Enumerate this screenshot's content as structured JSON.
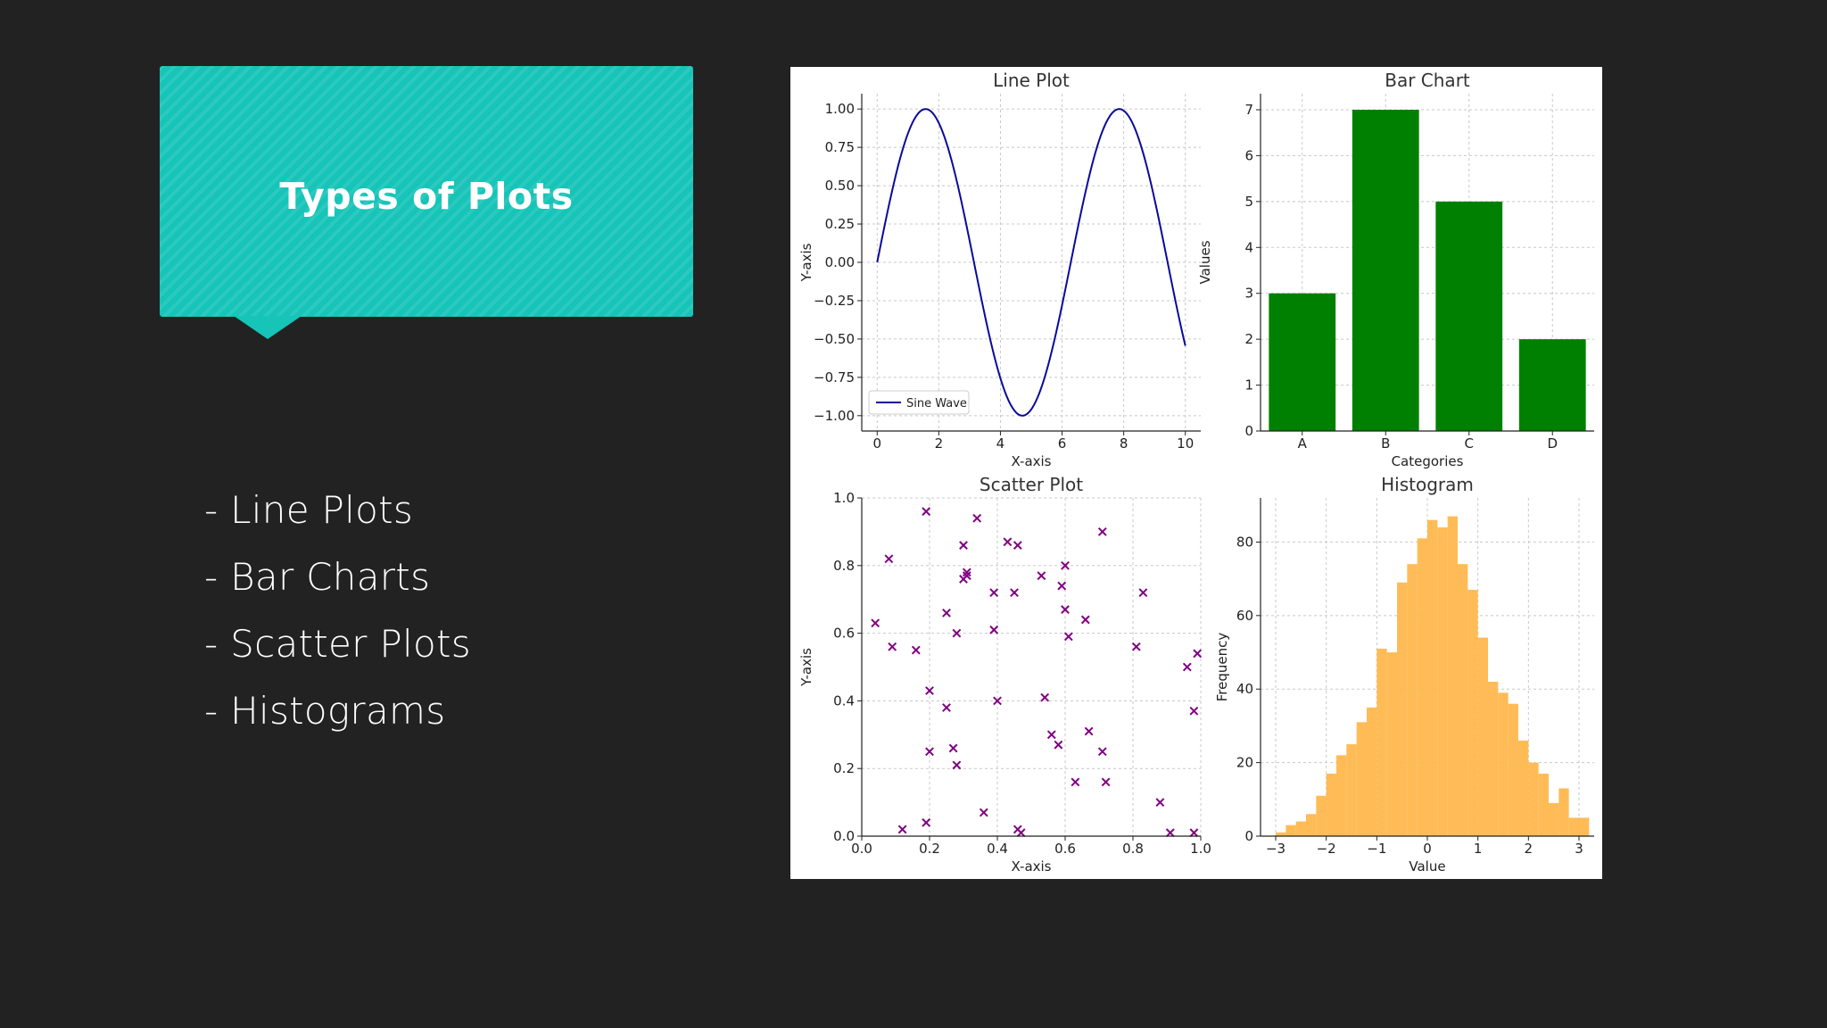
{
  "slide": {
    "title": "Types of Plots",
    "bullets": [
      "- Line Plots",
      "- Bar Charts",
      "- Scatter Plots",
      "- Histograms"
    ],
    "accent_color": "#16c4b8"
  },
  "chart_data": [
    {
      "type": "line",
      "title": "Line Plot",
      "xlabel": "X-axis",
      "ylabel": "Y-axis",
      "xlim": [
        -0.5,
        10.5
      ],
      "ylim": [
        -1.1,
        1.1
      ],
      "xticks": [
        "0",
        "2",
        "4",
        "6",
        "8",
        "10"
      ],
      "yticks": [
        "1.00",
        "0.75",
        "0.50",
        "0.25",
        "0.00",
        "−0.25",
        "−0.50",
        "−0.75",
        "−1.00"
      ],
      "legend": "lower-left",
      "grid": true,
      "color": "#0a0a9a",
      "series": [
        {
          "name": "Sine Wave",
          "x": [
            0,
            0.5,
            1,
            1.5,
            2,
            2.5,
            3,
            3.5,
            4,
            4.5,
            5,
            5.5,
            6,
            6.5,
            7,
            7.5,
            8,
            8.5,
            9,
            9.5,
            10
          ],
          "values": [
            0,
            0.479,
            0.841,
            0.997,
            0.909,
            0.598,
            0.141,
            -0.351,
            -0.757,
            -0.978,
            -0.959,
            -0.706,
            -0.279,
            0.215,
            0.657,
            0.938,
            0.989,
            0.798,
            0.412,
            -0.075,
            -0.544
          ]
        }
      ]
    },
    {
      "type": "bar",
      "title": "Bar Chart",
      "xlabel": "Categories",
      "ylabel": "Values",
      "categories": [
        "A",
        "B",
        "C",
        "D"
      ],
      "values": [
        3,
        7,
        5,
        2
      ],
      "ylim": [
        0,
        7.35
      ],
      "yticks": [
        "0",
        "1",
        "2",
        "3",
        "4",
        "5",
        "6",
        "7"
      ],
      "grid": true,
      "color": "#008000"
    },
    {
      "type": "scatter",
      "title": "Scatter Plot",
      "xlabel": "X-axis",
      "ylabel": "Y-axis",
      "xlim": [
        0,
        1
      ],
      "ylim": [
        0,
        1
      ],
      "xticks": [
        "0.0",
        "0.2",
        "0.4",
        "0.6",
        "0.8",
        "1.0"
      ],
      "yticks": [
        "1.0",
        "0.8",
        "0.6",
        "0.4",
        "0.2",
        "0.0"
      ],
      "grid": true,
      "marker": "x",
      "color": "#800080",
      "x": [
        0.04,
        0.08,
        0.09,
        0.12,
        0.16,
        0.19,
        0.19,
        0.2,
        0.2,
        0.25,
        0.25,
        0.27,
        0.28,
        0.28,
        0.3,
        0.3,
        0.31,
        0.31,
        0.34,
        0.36,
        0.39,
        0.39,
        0.4,
        0.43,
        0.45,
        0.46,
        0.46,
        0.47,
        0.53,
        0.54,
        0.56,
        0.58,
        0.59,
        0.6,
        0.6,
        0.61,
        0.63,
        0.66,
        0.67,
        0.71,
        0.71,
        0.72,
        0.81,
        0.83,
        0.88,
        0.91,
        0.96,
        0.98,
        0.99,
        0.98
      ],
      "y": [
        0.63,
        0.82,
        0.56,
        0.02,
        0.55,
        0.96,
        0.04,
        0.43,
        0.25,
        0.66,
        0.38,
        0.26,
        0.6,
        0.21,
        0.86,
        0.76,
        0.77,
        0.78,
        0.94,
        0.07,
        0.72,
        0.61,
        0.4,
        0.87,
        0.72,
        0.86,
        0.02,
        0.01,
        0.77,
        0.41,
        0.3,
        0.27,
        0.74,
        0.67,
        0.8,
        0.59,
        0.16,
        0.64,
        0.31,
        0.9,
        0.25,
        0.16,
        0.56,
        0.72,
        0.1,
        0.01,
        0.5,
        0.01,
        0.54,
        0.37
      ]
    },
    {
      "type": "bar",
      "subtype": "histogram",
      "title": "Histogram",
      "xlabel": "Value",
      "ylabel": "Frequency",
      "xlim": [
        -3.3,
        3.3
      ],
      "ylim": [
        0,
        92
      ],
      "xticks": [
        "−3",
        "−2",
        "−1",
        "0",
        "1",
        "2",
        "3"
      ],
      "yticks": [
        "0",
        "20",
        "40",
        "60",
        "80"
      ],
      "grid": true,
      "color": "#ffb84d",
      "bin_edges": [
        -3.0,
        -2.8,
        -2.6,
        -2.4,
        -2.2,
        -2.0,
        -1.8,
        -1.6,
        -1.4,
        -1.2,
        -1.0,
        -0.8,
        -0.6,
        -0.4,
        -0.2,
        0.0,
        0.2,
        0.4,
        0.6,
        0.8,
        1.0,
        1.2,
        1.4,
        1.6,
        1.8,
        2.0,
        2.2,
        2.4,
        2.6,
        2.8,
        3.0,
        3.2
      ],
      "values": [
        1,
        3,
        4,
        6,
        11,
        17,
        22,
        25,
        31,
        35,
        51,
        50,
        69,
        74,
        81,
        86,
        84,
        87,
        74,
        67,
        54,
        42,
        39,
        36,
        26,
        20,
        17,
        9,
        13,
        5,
        5
      ]
    }
  ]
}
